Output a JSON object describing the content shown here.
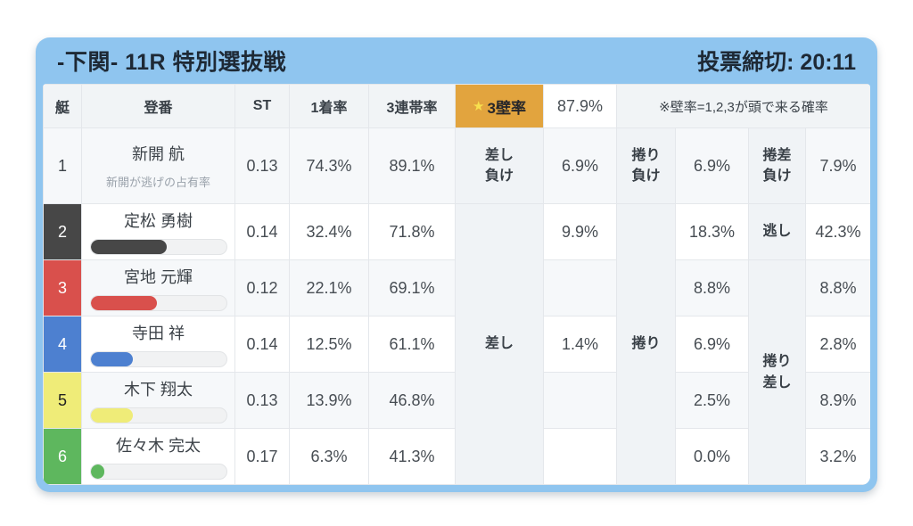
{
  "title": {
    "race": "-下関- 11R 特別選抜戦",
    "deadline": "投票締切: 20:11"
  },
  "header": {
    "boat": "艇",
    "reg": "登番",
    "st": "ST",
    "win1": "1着率",
    "top3": "3連帯率",
    "wall_star": "★",
    "wall_label": "3壁率",
    "wall_value": "87.9%",
    "note": "※壁率=1,2,3が頭で来る確率"
  },
  "merged_labels": {
    "sashi": "差し",
    "makuri": "捲り",
    "makurizashi": "捲り\n差し"
  },
  "colors": {
    "panel_blue": "#8fc5ef",
    "wall_orange": "#e2a43e",
    "star_yellow": "#f8e04e"
  },
  "rows": [
    {
      "boat": "1",
      "boat_bg": "",
      "boat_fg": "#3c4248",
      "name": "新開 航",
      "sub": "新開が逃げの占有率",
      "st": "0.13",
      "win1": "74.3%",
      "top3": "89.1%",
      "l1": "差し\n負け",
      "v1": "6.9%",
      "l2": "捲り\n負け",
      "v2": "6.9%",
      "l3": "捲差\n負け",
      "v3": "7.9%"
    },
    {
      "boat": "2",
      "boat_bg": "#474747",
      "boat_fg": "#ffffff",
      "name": "定松 勇樹",
      "bar_pct": 56,
      "st": "0.14",
      "win1": "32.4%",
      "top3": "71.8%",
      "v1": "9.9%",
      "v2": "18.3%",
      "l3": "逃し",
      "v3": "42.3%"
    },
    {
      "boat": "3",
      "boat_bg": "#d9504c",
      "boat_fg": "#ffffff",
      "name": "宮地 元輝",
      "bar_pct": 49,
      "st": "0.12",
      "win1": "22.1%",
      "top3": "69.1%",
      "v1": "",
      "v2": "8.8%",
      "v3": "8.8%"
    },
    {
      "boat": "4",
      "boat_bg": "#4d80d0",
      "boat_fg": "#ffffff",
      "name": "寺田 祥",
      "bar_pct": 31,
      "st": "0.14",
      "win1": "12.5%",
      "top3": "61.1%",
      "v1": "1.4%",
      "v2": "6.9%",
      "v3": "2.8%"
    },
    {
      "boat": "5",
      "boat_bg": "#efec78",
      "boat_fg": "#222222",
      "name": "木下 翔太",
      "bar_pct": 31,
      "st": "0.13",
      "win1": "13.9%",
      "top3": "46.8%",
      "v1": "",
      "v2": "2.5%",
      "v3": "8.9%"
    },
    {
      "boat": "6",
      "boat_bg": "#5eb75e",
      "boat_fg": "#ffffff",
      "name": "佐々木 完太",
      "bar_pct": 10,
      "st": "0.17",
      "win1": "6.3%",
      "top3": "41.3%",
      "v1": "",
      "v2": "0.0%",
      "v3": "3.2%"
    }
  ]
}
